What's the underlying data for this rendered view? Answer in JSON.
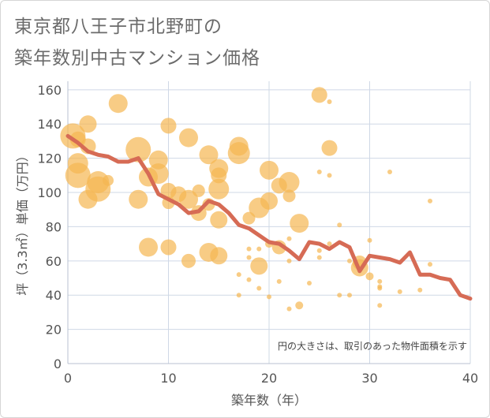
{
  "title_lines": [
    "東京都八王子市北野町の",
    "築年数別中古マンション価格"
  ],
  "chart_data": {
    "type": "scatter",
    "title": "東京都八王子市北野町の築年数別中古マンション価格",
    "xlabel": "築年数（年）",
    "ylabel": "坪（3.3㎡）単価（万円）",
    "xlim": [
      0,
      40
    ],
    "ylim": [
      0,
      165
    ],
    "x_ticks": [
      0,
      10,
      20,
      30,
      40
    ],
    "y_ticks": [
      0,
      20,
      40,
      60,
      80,
      100,
      120,
      140,
      160
    ],
    "grid": true,
    "annotation": "円の大きさは、取引のあった物件面積を示す",
    "colors": {
      "bubble": "#f5b651",
      "trend": "#d66b55",
      "plot_bg": "#ffffff",
      "grid": "#cfd8e6"
    },
    "points": [
      {
        "x": 0.5,
        "y": 133,
        "s": 16
      },
      {
        "x": 1,
        "y": 117,
        "s": 13
      },
      {
        "x": 1,
        "y": 110,
        "s": 16
      },
      {
        "x": 1,
        "y": 131,
        "s": 10
      },
      {
        "x": 2,
        "y": 140,
        "s": 11
      },
      {
        "x": 2,
        "y": 127,
        "s": 10
      },
      {
        "x": 2,
        "y": 96,
        "s": 12
      },
      {
        "x": 3,
        "y": 106,
        "s": 14
      },
      {
        "x": 3,
        "y": 102,
        "s": 16
      },
      {
        "x": 4,
        "y": 107,
        "s": 7
      },
      {
        "x": 5,
        "y": 152,
        "s": 12
      },
      {
        "x": 7,
        "y": 125,
        "s": 16
      },
      {
        "x": 7,
        "y": 96,
        "s": 12
      },
      {
        "x": 8,
        "y": 109,
        "s": 12
      },
      {
        "x": 8,
        "y": 68,
        "s": 12
      },
      {
        "x": 9,
        "y": 119,
        "s": 12
      },
      {
        "x": 9,
        "y": 111,
        "s": 13
      },
      {
        "x": 10,
        "y": 139,
        "s": 10
      },
      {
        "x": 10,
        "y": 101,
        "s": 10
      },
      {
        "x": 10,
        "y": 94,
        "s": 8
      },
      {
        "x": 10,
        "y": 68,
        "s": 10
      },
      {
        "x": 11,
        "y": 99,
        "s": 10
      },
      {
        "x": 12,
        "y": 132,
        "s": 12
      },
      {
        "x": 12,
        "y": 96,
        "s": 12
      },
      {
        "x": 12,
        "y": 60,
        "s": 9
      },
      {
        "x": 13,
        "y": 101,
        "s": 8
      },
      {
        "x": 13,
        "y": 88,
        "s": 10
      },
      {
        "x": 14,
        "y": 122,
        "s": 12
      },
      {
        "x": 14,
        "y": 93,
        "s": 8
      },
      {
        "x": 14,
        "y": 65,
        "s": 12
      },
      {
        "x": 15,
        "y": 114,
        "s": 12
      },
      {
        "x": 15,
        "y": 110,
        "s": 10
      },
      {
        "x": 15,
        "y": 102,
        "s": 13
      },
      {
        "x": 15,
        "y": 84,
        "s": 11
      },
      {
        "x": 15,
        "y": 63,
        "s": 11
      },
      {
        "x": 17,
        "y": 127,
        "s": 12
      },
      {
        "x": 17,
        "y": 123,
        "s": 14
      },
      {
        "x": 17,
        "y": 52,
        "s": 3
      },
      {
        "x": 17,
        "y": 40,
        "s": 3
      },
      {
        "x": 18,
        "y": 85,
        "s": 8
      },
      {
        "x": 18,
        "y": 67,
        "s": 3
      },
      {
        "x": 18,
        "y": 62,
        "s": 3
      },
      {
        "x": 18,
        "y": 49,
        "s": 3
      },
      {
        "x": 19,
        "y": 91,
        "s": 13
      },
      {
        "x": 19,
        "y": 67,
        "s": 3
      },
      {
        "x": 19,
        "y": 57,
        "s": 11
      },
      {
        "x": 19,
        "y": 44,
        "s": 3
      },
      {
        "x": 20,
        "y": 113,
        "s": 12
      },
      {
        "x": 20,
        "y": 95,
        "s": 11
      },
      {
        "x": 20,
        "y": 70,
        "s": 5
      },
      {
        "x": 20,
        "y": 39,
        "s": 3
      },
      {
        "x": 21,
        "y": 104,
        "s": 10
      },
      {
        "x": 21,
        "y": 68,
        "s": 9
      },
      {
        "x": 21,
        "y": 48,
        "s": 3
      },
      {
        "x": 22,
        "y": 106,
        "s": 13
      },
      {
        "x": 22,
        "y": 98,
        "s": 8
      },
      {
        "x": 22,
        "y": 73,
        "s": 3
      },
      {
        "x": 22,
        "y": 60,
        "s": 3
      },
      {
        "x": 22,
        "y": 32,
        "s": 3
      },
      {
        "x": 23,
        "y": 82,
        "s": 12
      },
      {
        "x": 23,
        "y": 34,
        "s": 5
      },
      {
        "x": 24,
        "y": 47,
        "s": 3
      },
      {
        "x": 25,
        "y": 157,
        "s": 10
      },
      {
        "x": 25,
        "y": 112,
        "s": 3
      },
      {
        "x": 25,
        "y": 66,
        "s": 3
      },
      {
        "x": 25,
        "y": 62,
        "s": 3
      },
      {
        "x": 26,
        "y": 153,
        "s": 3
      },
      {
        "x": 26,
        "y": 126,
        "s": 10
      },
      {
        "x": 26,
        "y": 110,
        "s": 3
      },
      {
        "x": 26,
        "y": 70,
        "s": 3
      },
      {
        "x": 27,
        "y": 81,
        "s": 3
      },
      {
        "x": 27,
        "y": 40,
        "s": 3
      },
      {
        "x": 28,
        "y": 60,
        "s": 3
      },
      {
        "x": 28,
        "y": 40,
        "s": 3
      },
      {
        "x": 29,
        "y": 59,
        "s": 9
      },
      {
        "x": 29,
        "y": 56,
        "s": 11
      },
      {
        "x": 30,
        "y": 72,
        "s": 3
      },
      {
        "x": 30,
        "y": 51,
        "s": 5
      },
      {
        "x": 31,
        "y": 48,
        "s": 3
      },
      {
        "x": 31,
        "y": 45,
        "s": 3
      },
      {
        "x": 31,
        "y": 44,
        "s": 3
      },
      {
        "x": 31,
        "y": 34,
        "s": 3
      },
      {
        "x": 32,
        "y": 112,
        "s": 3
      },
      {
        "x": 33,
        "y": 42,
        "s": 3
      },
      {
        "x": 35,
        "y": 43,
        "s": 3
      },
      {
        "x": 36,
        "y": 95,
        "s": 3
      },
      {
        "x": 36,
        "y": 58,
        "s": 3
      }
    ],
    "trend": [
      {
        "x": 0,
        "y": 133
      },
      {
        "x": 1,
        "y": 129
      },
      {
        "x": 2,
        "y": 124
      },
      {
        "x": 3,
        "y": 122
      },
      {
        "x": 4,
        "y": 121
      },
      {
        "x": 5,
        "y": 118
      },
      {
        "x": 6,
        "y": 118
      },
      {
        "x": 7,
        "y": 120
      },
      {
        "x": 8,
        "y": 111
      },
      {
        "x": 9,
        "y": 99
      },
      {
        "x": 10,
        "y": 96
      },
      {
        "x": 11,
        "y": 93
      },
      {
        "x": 12,
        "y": 88
      },
      {
        "x": 13,
        "y": 89
      },
      {
        "x": 14,
        "y": 95
      },
      {
        "x": 15,
        "y": 93
      },
      {
        "x": 16,
        "y": 88
      },
      {
        "x": 17,
        "y": 81
      },
      {
        "x": 18,
        "y": 79
      },
      {
        "x": 19,
        "y": 75
      },
      {
        "x": 20,
        "y": 71
      },
      {
        "x": 21,
        "y": 70
      },
      {
        "x": 22,
        "y": 66
      },
      {
        "x": 23,
        "y": 61
      },
      {
        "x": 24,
        "y": 71
      },
      {
        "x": 25,
        "y": 70
      },
      {
        "x": 26,
        "y": 67
      },
      {
        "x": 27,
        "y": 71
      },
      {
        "x": 28,
        "y": 68
      },
      {
        "x": 29,
        "y": 54
      },
      {
        "x": 30,
        "y": 63
      },
      {
        "x": 31,
        "y": 62
      },
      {
        "x": 32,
        "y": 61
      },
      {
        "x": 33,
        "y": 59
      },
      {
        "x": 34,
        "y": 65
      },
      {
        "x": 35,
        "y": 52
      },
      {
        "x": 36,
        "y": 52
      },
      {
        "x": 37,
        "y": 50
      },
      {
        "x": 38,
        "y": 49
      },
      {
        "x": 39,
        "y": 40
      },
      {
        "x": 40,
        "y": 38
      }
    ]
  }
}
